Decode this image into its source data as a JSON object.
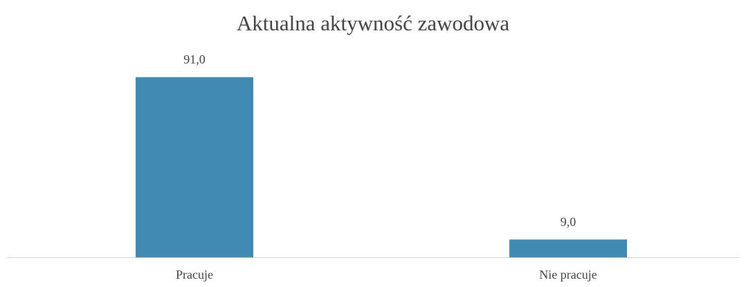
{
  "chart_data": {
    "type": "bar",
    "title": "Aktualna aktywność zawodowa",
    "categories": [
      "Pracuje",
      "Nie pracuje"
    ],
    "values": [
      91,
      9
    ],
    "value_labels": [
      "91,0",
      "9,0"
    ],
    "color": "#418ab3",
    "ylim": [
      0,
      100
    ]
  }
}
